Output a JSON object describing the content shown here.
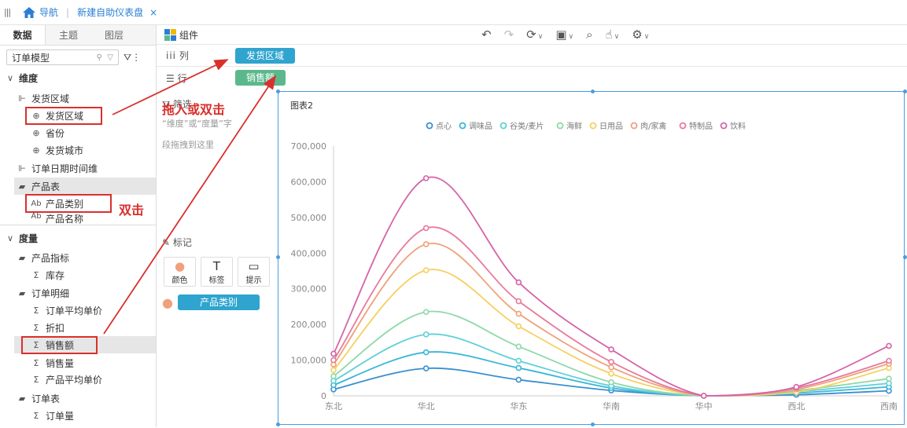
{
  "topbar": {
    "nav_label": "导航",
    "dashboard_tab": "新建自助仪表盘",
    "close": "×"
  },
  "left": {
    "tabs": [
      "数据",
      "主题",
      "图层"
    ],
    "model_name": "订单模型",
    "sections": {
      "dimension": "维度",
      "measure": "度量"
    },
    "tree": {
      "ship_region_group": "发货区域",
      "ship_region": "发货区域",
      "province": "省份",
      "ship_city": "发货城市",
      "order_date_dim": "订单日期时间维",
      "product_table": "产品表",
      "product_category": "产品类别",
      "product_name": "产品名称",
      "product_metrics": "产品指标",
      "stock": "库存",
      "order_detail": "订单明细",
      "avg_unit_price": "订单平均单价",
      "discount": "折扣",
      "sales_amount": "销售额",
      "sales_qty": "销售量",
      "product_avg_price": "产品平均单价",
      "order_table": "订单表",
      "order_count": "订单量"
    }
  },
  "components": {
    "title": "组件",
    "columns_label": "列",
    "rows_label": "行",
    "column_pill": "发货区域",
    "row_pill": "销售额",
    "filter_label": "筛选",
    "filter_hint_1": "“维度”或“度量”字",
    "filter_hint_2": "段拖拽到这里",
    "mark_label": "标记",
    "mark_buttons": [
      "颜色",
      "标签",
      "提示"
    ],
    "color_pill": "产品类别"
  },
  "annotations": {
    "drag_or_dblclick": "拖入或双击",
    "dblclick": "双击"
  },
  "colors": {
    "accent_blue": "#2a7fd4",
    "pill_blue": "#2fa4cf",
    "pill_green": "#5cb88c",
    "annotation_red": "#d9302c"
  },
  "chart_data": {
    "type": "line",
    "title": "图表2",
    "categories": [
      "东北",
      "华北",
      "华东",
      "华南",
      "华中",
      "西北",
      "西南"
    ],
    "ylim": [
      0,
      700000
    ],
    "yticks": [
      "0",
      "100,000",
      "200,000",
      "300,000",
      "400,000",
      "500,000",
      "600,000",
      "700,000"
    ],
    "legend_position": "top",
    "series": [
      {
        "name": "点心",
        "color": "#3b8fce",
        "values": [
          18000,
          77000,
          45000,
          15000,
          0,
          3000,
          14000
        ]
      },
      {
        "name": "调味品",
        "color": "#38b6d8",
        "values": [
          30000,
          122000,
          78000,
          22000,
          0,
          8000,
          25000
        ]
      },
      {
        "name": "谷类/麦片",
        "color": "#5fd0d8",
        "values": [
          42000,
          172000,
          98000,
          28000,
          0,
          12000,
          35000
        ]
      },
      {
        "name": "海鲜",
        "color": "#8fd8a8",
        "values": [
          55000,
          235000,
          138000,
          38000,
          0,
          15000,
          48000
        ]
      },
      {
        "name": "日用品",
        "color": "#f5d060",
        "values": [
          72000,
          352000,
          195000,
          62000,
          0,
          10000,
          78000
        ]
      },
      {
        "name": "肉/家禽",
        "color": "#f0a07a",
        "values": [
          88000,
          425000,
          230000,
          80000,
          0,
          18000,
          90000
        ]
      },
      {
        "name": "特制品",
        "color": "#e87a9a",
        "values": [
          100000,
          470000,
          265000,
          95000,
          0,
          22000,
          98000
        ]
      },
      {
        "name": "饮料",
        "color": "#d564a8",
        "values": [
          118000,
          610000,
          318000,
          130000,
          0,
          25000,
          140000
        ]
      }
    ]
  }
}
